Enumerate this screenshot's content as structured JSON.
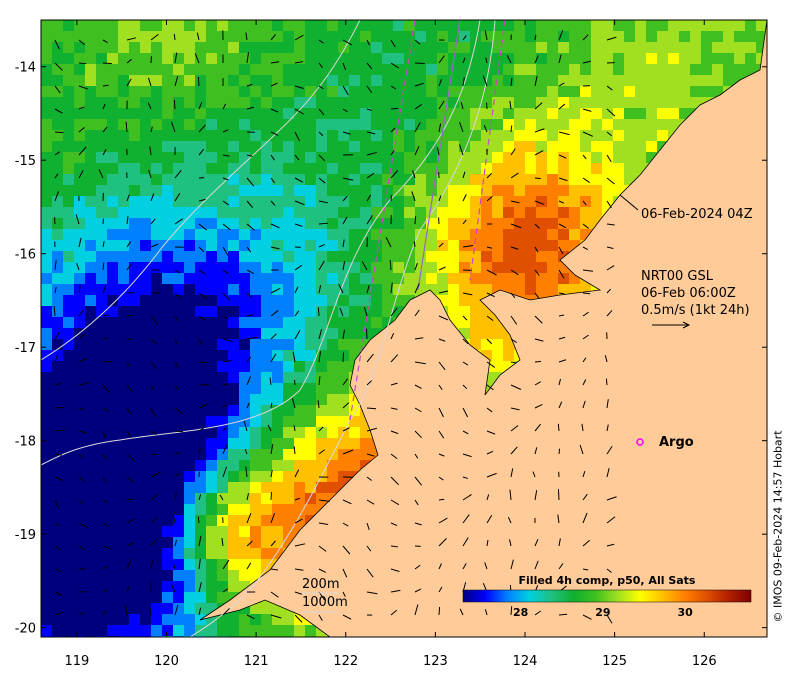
{
  "product": "Filled 4h comp, p50, All Sats",
  "colorbar": {
    "ticks": [
      "28",
      "29",
      "30"
    ],
    "tick_values": [
      28,
      29,
      30
    ],
    "range": [
      27.3,
      30.8
    ],
    "colors": [
      "#00007f",
      "#0000ff",
      "#0080ff",
      "#00d0e0",
      "#20c080",
      "#10b030",
      "#40c020",
      "#a0e020",
      "#ffff00",
      "#ffc000",
      "#ff8000",
      "#e05000",
      "#b02000",
      "#7f0000"
    ]
  },
  "axes": {
    "x_ticks": [
      "119",
      "120",
      "121",
      "122",
      "123",
      "124",
      "125",
      "126"
    ],
    "x_values": [
      119,
      120,
      121,
      122,
      123,
      124,
      125,
      126
    ],
    "y_ticks": [
      "-14",
      "-15",
      "-16",
      "-17",
      "-18",
      "-19",
      "-20"
    ],
    "y_values": [
      -14,
      -15,
      -16,
      -17,
      -18,
      -19,
      -20
    ],
    "xlim": [
      118.6,
      126.7
    ],
    "ylim": [
      -20.1,
      -13.5
    ]
  },
  "annotations": {
    "track_time": "06-Feb-2024 04Z",
    "current_line1": "NRT00 GSL",
    "current_line2": "06-Feb 06:00Z",
    "current_line3": "0.5m/s (1kt 24h)"
  },
  "argo": {
    "label": "Argo",
    "lon": 125.3,
    "lat": -18.0,
    "color": "#ff00ff"
  },
  "legend": {
    "isobath1": "200m",
    "isobath2": "1000m"
  },
  "credit": "© IMOS 09-Feb-2024 14:57 Hobart",
  "colors": {
    "land": "#ffcc99",
    "isobath": "#d8d8d8",
    "track": "#cc44cc"
  }
}
